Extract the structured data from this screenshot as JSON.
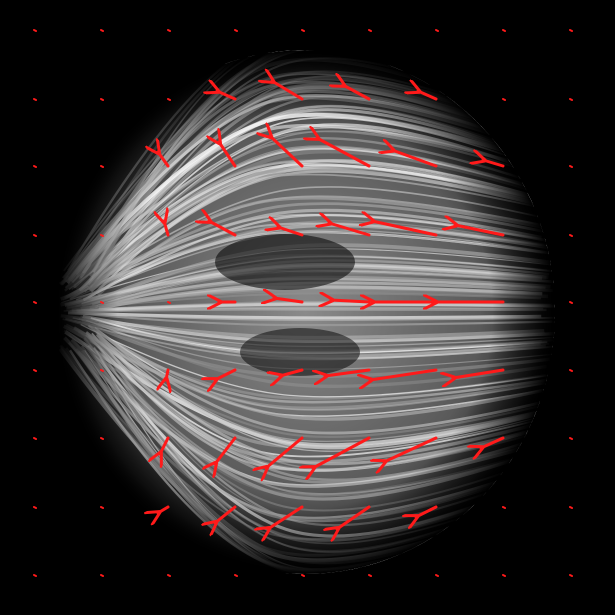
{
  "figure": {
    "background": "#000000",
    "arrow_color": "#ff1a1a",
    "texture_color": "#ffffff",
    "grid": {
      "columns": [
        34,
        101,
        168,
        235,
        302,
        369,
        436,
        503,
        570
      ],
      "rows": [
        30,
        99,
        166,
        235,
        302,
        370,
        438,
        507,
        575
      ]
    },
    "arrows": [
      [
        [
          0,
          0
        ],
        [
          0,
          0
        ],
        [
          0,
          0
        ],
        [
          0,
          0
        ],
        [
          0,
          0
        ],
        [
          0,
          0
        ],
        [
          0,
          0
        ],
        [
          0,
          0
        ],
        [
          0,
          0
        ]
      ],
      [
        [
          0,
          0
        ],
        [
          0,
          0
        ],
        [
          0,
          0
        ],
        [
          -18,
          -8
        ],
        [
          -30,
          -18
        ],
        [
          -26,
          -14
        ],
        [
          -18,
          -8
        ],
        [
          0,
          0
        ],
        [
          0,
          0
        ]
      ],
      [
        [
          0,
          0
        ],
        [
          0,
          0
        ],
        [
          -10,
          -14
        ],
        [
          -16,
          -24
        ],
        [
          -32,
          -30
        ],
        [
          -52,
          -28
        ],
        [
          -44,
          -16
        ],
        [
          -20,
          -6
        ],
        [
          0,
          0
        ]
      ],
      [
        [
          0,
          0
        ],
        [
          0,
          0
        ],
        [
          -4,
          -14
        ],
        [
          -26,
          -14
        ],
        [
          -24,
          -8
        ],
        [
          -40,
          -12
        ],
        [
          -64,
          -14
        ],
        [
          -48,
          -10
        ],
        [
          0,
          0
        ]
      ],
      [
        [
          0,
          0
        ],
        [
          0,
          0
        ],
        [
          0,
          0
        ],
        [
          -16,
          0
        ],
        [
          -28,
          -4
        ],
        [
          -38,
          -2
        ],
        [
          -64,
          0
        ],
        [
          -68,
          0
        ],
        [
          0,
          0
        ]
      ],
      [
        [
          0,
          0
        ],
        [
          0,
          0
        ],
        [
          -2,
          10
        ],
        [
          -20,
          10
        ],
        [
          -22,
          6
        ],
        [
          -44,
          6
        ],
        [
          -66,
          10
        ],
        [
          -50,
          8
        ],
        [
          0,
          0
        ]
      ],
      [
        [
          0,
          0
        ],
        [
          0,
          0
        ],
        [
          -8,
          16
        ],
        [
          -20,
          26
        ],
        [
          -36,
          30
        ],
        [
          -56,
          30
        ],
        [
          -52,
          24
        ],
        [
          -22,
          10
        ],
        [
          0,
          0
        ]
      ],
      [
        [
          0,
          0
        ],
        [
          0,
          0
        ],
        [
          -10,
          6
        ],
        [
          -20,
          16
        ],
        [
          -34,
          22
        ],
        [
          -32,
          22
        ],
        [
          -20,
          10
        ],
        [
          0,
          0
        ],
        [
          0,
          0
        ]
      ],
      [
        [
          0,
          0
        ],
        [
          0,
          0
        ],
        [
          0,
          0
        ],
        [
          0,
          0
        ],
        [
          0,
          0
        ],
        [
          0,
          0
        ],
        [
          0,
          0
        ],
        [
          0,
          0
        ],
        [
          0,
          0
        ]
      ]
    ]
  }
}
